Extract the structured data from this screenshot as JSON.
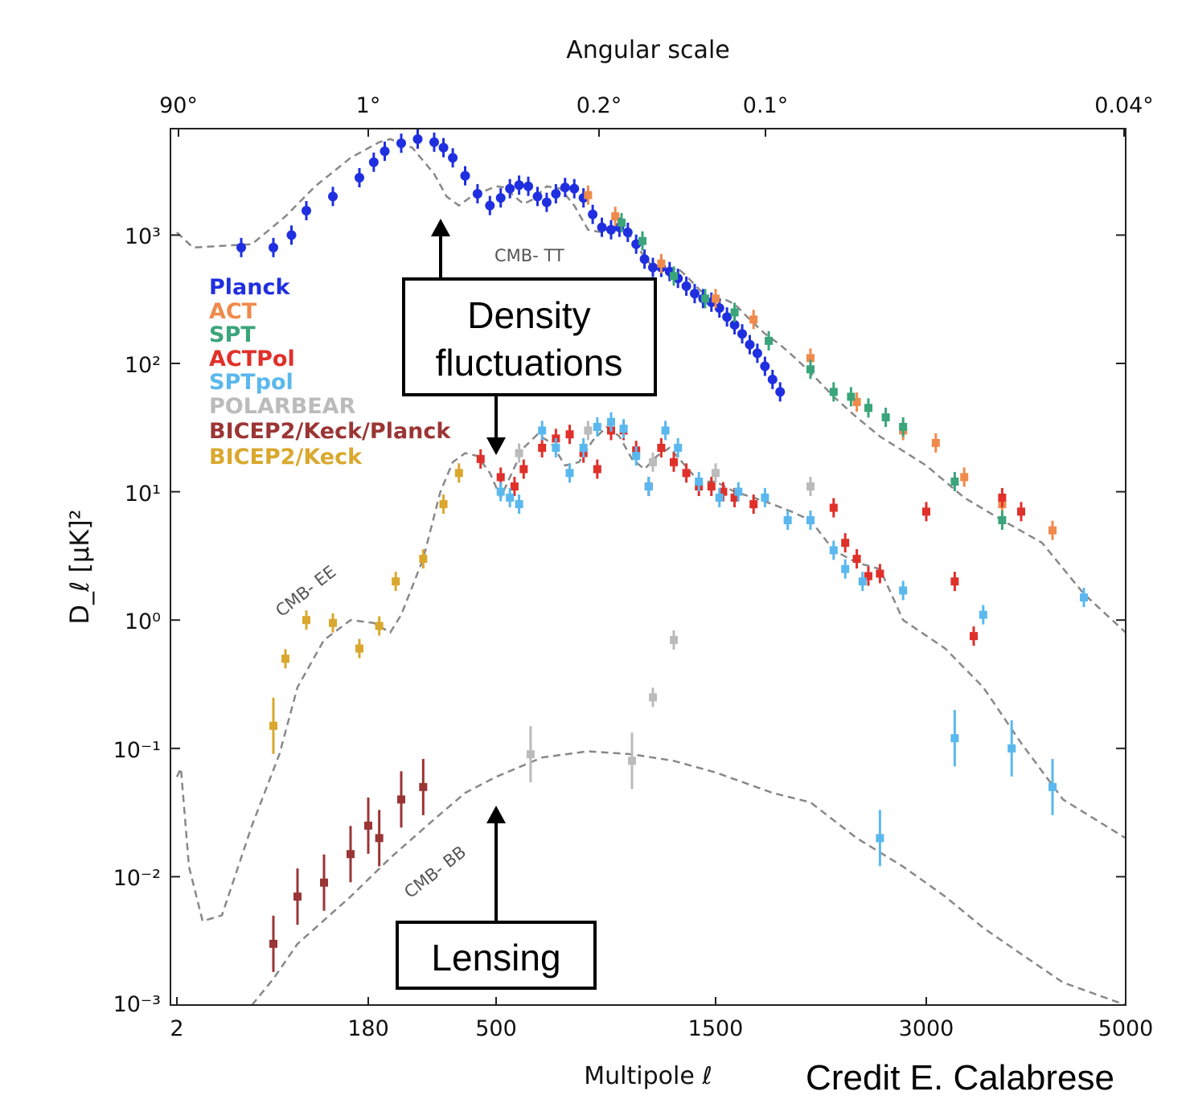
{
  "chart_data": {
    "type": "scatter",
    "title": "Angular scale",
    "xlabel": "Multipole ℓ",
    "ylabel": "D_ℓ [μK]²",
    "xticks": [
      "2",
      "180",
      "500",
      "1500",
      "3000",
      "5000"
    ],
    "top_ticks": [
      "90°",
      "1°",
      "0.2°",
      "0.1°",
      "0.04°"
    ],
    "yticks": [
      "10³",
      "10²",
      "10¹",
      "10⁰",
      "10⁻¹",
      "10⁻²",
      "10⁻³"
    ],
    "ylim": [
      0.001,
      8000
    ],
    "xlim": [
      2,
      5000
    ],
    "yscale": "log",
    "legend_position": "left",
    "legend": [
      {
        "name": "Planck",
        "color": "#1f2fe0"
      },
      {
        "name": "ACT",
        "color": "#f08a4b"
      },
      {
        "name": "SPT",
        "color": "#3aa57a"
      },
      {
        "name": "ACTPol",
        "color": "#e0302a"
      },
      {
        "name": "SPTpol",
        "color": "#5ab8ee"
      },
      {
        "name": "POLARBEAR",
        "color": "#bbbbbb"
      },
      {
        "name": "BICEP2/Keck/Planck",
        "color": "#9b3535"
      },
      {
        "name": "BICEP2/Keck",
        "color": "#d9a82d"
      }
    ],
    "curves": [
      {
        "name": "CMB- TT",
        "points": [
          [
            2,
            1050
          ],
          [
            10,
            800
          ],
          [
            40,
            850
          ],
          [
            80,
            1400
          ],
          [
            120,
            2400
          ],
          [
            160,
            4000
          ],
          [
            200,
            5300
          ],
          [
            220,
            5600
          ],
          [
            260,
            4800
          ],
          [
            300,
            3000
          ],
          [
            340,
            2000
          ],
          [
            380,
            1700
          ],
          [
            420,
            2000
          ],
          [
            500,
            2400
          ],
          [
            540,
            2350
          ],
          [
            580,
            2000
          ],
          [
            620,
            1750
          ],
          [
            660,
            1900
          ],
          [
            720,
            2400
          ],
          [
            780,
            2300
          ],
          [
            840,
            1700
          ],
          [
            900,
            1100
          ],
          [
            960,
            1050
          ],
          [
            1020,
            1200
          ],
          [
            1080,
            1050
          ],
          [
            1140,
            750
          ],
          [
            1200,
            560
          ],
          [
            1260,
            530
          ],
          [
            1320,
            550
          ],
          [
            1360,
            480
          ],
          [
            1420,
            380
          ],
          [
            1480,
            300
          ],
          [
            1540,
            320
          ],
          [
            1600,
            290
          ],
          [
            1680,
            220
          ],
          [
            1760,
            170
          ],
          [
            1840,
            140
          ],
          [
            1920,
            110
          ],
          [
            2000,
            85
          ],
          [
            2200,
            55
          ],
          [
            2400,
            38
          ],
          [
            2600,
            27
          ],
          [
            3000,
            16
          ],
          [
            3400,
            9
          ],
          [
            3800,
            6
          ],
          [
            4200,
            4
          ],
          [
            4600,
            1.6
          ],
          [
            5000,
            0.8
          ]
        ]
      },
      {
        "name": "CMB- EE",
        "points": [
          [
            2,
            0.06
          ],
          [
            4,
            0.07
          ],
          [
            8,
            0.012
          ],
          [
            14,
            0.0045
          ],
          [
            22,
            0.005
          ],
          [
            40,
            0.025
          ],
          [
            70,
            0.09
          ],
          [
            100,
            0.3
          ],
          [
            130,
            0.7
          ],
          [
            160,
            1.0
          ],
          [
            190,
            0.95
          ],
          [
            220,
            0.8
          ],
          [
            240,
            1.1
          ],
          [
            280,
            3
          ],
          [
            320,
            10
          ],
          [
            360,
            17
          ],
          [
            400,
            20
          ],
          [
            440,
            19
          ],
          [
            480,
            14
          ],
          [
            520,
            9
          ],
          [
            560,
            13
          ],
          [
            620,
            22
          ],
          [
            680,
            28
          ],
          [
            740,
            24
          ],
          [
            800,
            16
          ],
          [
            860,
            17
          ],
          [
            920,
            25
          ],
          [
            980,
            32
          ],
          [
            1040,
            27
          ],
          [
            1100,
            18
          ],
          [
            1160,
            15
          ],
          [
            1220,
            19
          ],
          [
            1280,
            22
          ],
          [
            1340,
            17
          ],
          [
            1420,
            12
          ],
          [
            1500,
            12
          ],
          [
            1600,
            10
          ],
          [
            1700,
            9
          ],
          [
            1800,
            8
          ],
          [
            1900,
            7
          ],
          [
            2000,
            6
          ],
          [
            2200,
            3.5
          ],
          [
            2400,
            2.8
          ],
          [
            2600,
            2.5
          ],
          [
            2800,
            1.0
          ],
          [
            3200,
            0.6
          ],
          [
            3600,
            0.3
          ],
          [
            4000,
            0.11
          ],
          [
            4400,
            0.04
          ],
          [
            5000,
            0.02
          ]
        ]
      },
      {
        "name": "CMB- BB",
        "points": [
          [
            40,
            0.001
          ],
          [
            60,
            0.0016
          ],
          [
            100,
            0.003
          ],
          [
            160,
            0.007
          ],
          [
            220,
            0.014
          ],
          [
            300,
            0.028
          ],
          [
            400,
            0.045
          ],
          [
            500,
            0.06
          ],
          [
            700,
            0.085
          ],
          [
            900,
            0.095
          ],
          [
            1100,
            0.09
          ],
          [
            1300,
            0.08
          ],
          [
            1500,
            0.065
          ],
          [
            1800,
            0.045
          ],
          [
            2000,
            0.038
          ],
          [
            2400,
            0.02
          ],
          [
            2800,
            0.012
          ],
          [
            3200,
            0.007
          ],
          [
            3600,
            0.004
          ],
          [
            4000,
            0.0025
          ],
          [
            4400,
            0.0015
          ],
          [
            5000,
            0.0008
          ]
        ]
      }
    ],
    "series": [
      {
        "name": "Planck",
        "values": [
          [
            30,
            800
          ],
          [
            60,
            800
          ],
          [
            90,
            1000
          ],
          [
            110,
            1550
          ],
          [
            140,
            2000
          ],
          [
            170,
            2800
          ],
          [
            190,
            3700
          ],
          [
            210,
            4500
          ],
          [
            240,
            5200
          ],
          [
            270,
            5600
          ],
          [
            300,
            5300
          ],
          [
            330,
            4800
          ],
          [
            360,
            4000
          ],
          [
            400,
            2900
          ],
          [
            440,
            2100
          ],
          [
            480,
            1700
          ],
          [
            520,
            1950
          ],
          [
            560,
            2300
          ],
          [
            600,
            2450
          ],
          [
            640,
            2400
          ],
          [
            680,
            2000
          ],
          [
            720,
            1800
          ],
          [
            760,
            2100
          ],
          [
            800,
            2350
          ],
          [
            840,
            2300
          ],
          [
            880,
            1950
          ],
          [
            920,
            1450
          ],
          [
            960,
            1150
          ],
          [
            1000,
            1100
          ],
          [
            1040,
            1150
          ],
          [
            1080,
            1050
          ],
          [
            1120,
            850
          ],
          [
            1160,
            650
          ],
          [
            1200,
            560
          ],
          [
            1240,
            560
          ],
          [
            1280,
            520
          ],
          [
            1320,
            460
          ],
          [
            1360,
            400
          ],
          [
            1400,
            350
          ],
          [
            1440,
            320
          ],
          [
            1480,
            300
          ],
          [
            1520,
            270
          ],
          [
            1560,
            230
          ],
          [
            1600,
            200
          ],
          [
            1640,
            170
          ],
          [
            1680,
            140
          ],
          [
            1720,
            120
          ],
          [
            1760,
            95
          ],
          [
            1800,
            75
          ],
          [
            1840,
            60
          ]
        ]
      },
      {
        "name": "ACT",
        "values": [
          [
            900,
            2050
          ],
          [
            1020,
            1400
          ],
          [
            1240,
            600
          ],
          [
            1500,
            320
          ],
          [
            1700,
            220
          ],
          [
            2000,
            110
          ],
          [
            2400,
            50
          ],
          [
            2800,
            30
          ],
          [
            3100,
            24
          ],
          [
            3400,
            13
          ],
          [
            3800,
            8
          ],
          [
            4300,
            5
          ]
        ]
      },
      {
        "name": "SPT",
        "values": [
          [
            1050,
            1250
          ],
          [
            1150,
            900
          ],
          [
            1300,
            480
          ],
          [
            1450,
            320
          ],
          [
            1600,
            250
          ],
          [
            1780,
            150
          ],
          [
            2000,
            90
          ],
          [
            2200,
            60
          ],
          [
            2350,
            55
          ],
          [
            2500,
            45
          ],
          [
            2650,
            38
          ],
          [
            2800,
            32
          ],
          [
            3300,
            12
          ],
          [
            3800,
            6
          ]
        ]
      },
      {
        "name": "ACTPol",
        "values": [
          [
            450,
            18
          ],
          [
            520,
            13
          ],
          [
            580,
            11
          ],
          [
            620,
            15
          ],
          [
            700,
            22
          ],
          [
            760,
            26
          ],
          [
            820,
            28
          ],
          [
            880,
            20
          ],
          [
            940,
            15
          ],
          [
            1000,
            30
          ],
          [
            1060,
            30
          ],
          [
            1120,
            21
          ],
          [
            1180,
            11
          ],
          [
            1240,
            22
          ],
          [
            1300,
            17
          ],
          [
            1360,
            14
          ],
          [
            1420,
            11
          ],
          [
            1480,
            11
          ],
          [
            1540,
            10
          ],
          [
            1600,
            9
          ],
          [
            1700,
            8
          ],
          [
            2200,
            7.5
          ],
          [
            2300,
            4
          ],
          [
            2400,
            3
          ],
          [
            2500,
            2.2
          ],
          [
            2600,
            2.3
          ],
          [
            3000,
            7
          ],
          [
            3300,
            2
          ],
          [
            3500,
            0.75
          ],
          [
            3800,
            9
          ],
          [
            4000,
            7
          ]
        ]
      },
      {
        "name": "SPTpol",
        "values": [
          [
            520,
            10
          ],
          [
            560,
            9
          ],
          [
            600,
            8
          ],
          [
            700,
            30
          ],
          [
            760,
            22
          ],
          [
            820,
            14
          ],
          [
            880,
            22
          ],
          [
            940,
            32
          ],
          [
            1000,
            35
          ],
          [
            1060,
            31
          ],
          [
            1120,
            19
          ],
          [
            1180,
            11
          ],
          [
            1260,
            30
          ],
          [
            1320,
            22
          ],
          [
            1420,
            12
          ],
          [
            1520,
            9
          ],
          [
            1620,
            10
          ],
          [
            1760,
            9
          ],
          [
            1880,
            6
          ],
          [
            2000,
            6
          ],
          [
            2200,
            3.5
          ],
          [
            2300,
            2.5
          ],
          [
            2450,
            2
          ],
          [
            2600,
            0.02
          ],
          [
            2800,
            1.7
          ],
          [
            3300,
            0.12
          ],
          [
            3600,
            1.1
          ],
          [
            3900,
            0.1
          ],
          [
            4300,
            0.05
          ],
          [
            4600,
            1.5
          ]
        ]
      },
      {
        "name": "POLARBEAR",
        "values": [
          [
            600,
            20
          ],
          [
            900,
            30
          ],
          [
            1200,
            17
          ],
          [
            1500,
            14
          ],
          [
            2000,
            11
          ],
          [
            1100,
            0.08
          ],
          [
            1200,
            0.25
          ],
          [
            1300,
            0.7
          ],
          [
            650,
            0.09
          ]
        ]
      },
      {
        "name": "BICEP2/Keck/Planck",
        "values": [
          [
            60,
            0.003
          ],
          [
            100,
            0.007
          ],
          [
            130,
            0.009
          ],
          [
            160,
            0.015
          ],
          [
            180,
            0.025
          ],
          [
            200,
            0.02
          ],
          [
            240,
            0.04
          ],
          [
            280,
            0.05
          ]
        ]
      },
      {
        "name": "BICEP2/Keck",
        "values": [
          [
            60,
            0.15
          ],
          [
            80,
            0.5
          ],
          [
            110,
            1.0
          ],
          [
            140,
            0.95
          ],
          [
            170,
            0.6
          ],
          [
            200,
            0.9
          ],
          [
            230,
            2.0
          ],
          [
            280,
            3
          ],
          [
            330,
            8
          ],
          [
            380,
            14
          ]
        ]
      }
    ],
    "annotations": [
      {
        "text": "Density"
      },
      {
        "text": "fluctuations"
      },
      {
        "text": "Lensing"
      }
    ],
    "credit": "Credit E. Calabrese"
  }
}
